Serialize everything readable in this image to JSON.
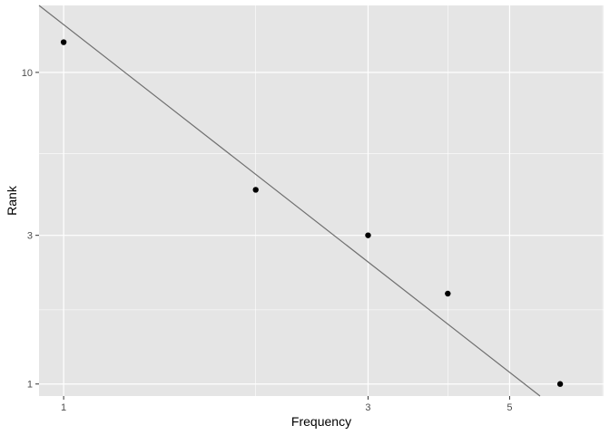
{
  "chart_data": {
    "type": "scatter",
    "title": "",
    "xlabel": "Frequency",
    "ylabel": "Rank",
    "x_scale": "log",
    "y_scale": "log",
    "xlim": [
      0.915,
      7.02
    ],
    "ylim": [
      0.915,
      16.4
    ],
    "x_major_ticks": [
      1,
      3,
      5
    ],
    "x_minor_ticks": [
      2,
      4,
      7
    ],
    "y_major_ticks": [
      1,
      3,
      10
    ],
    "y_minor_ticks": [
      1.73,
      5.48
    ],
    "grid": true,
    "points": [
      {
        "x": 1.0,
        "y": 12.5
      },
      {
        "x": 2.0,
        "y": 4.2
      },
      {
        "x": 3.0,
        "y": 3.0
      },
      {
        "x": 4.0,
        "y": 1.95
      },
      {
        "x": 6.0,
        "y": 1.0
      }
    ],
    "fit_line": {
      "x": [
        0.915,
        5.58
      ],
      "y": [
        16.4,
        0.915
      ]
    },
    "colors": {
      "panel": "#e5e5e5",
      "grid": "#ffffff",
      "points": "#000000",
      "fit_line": "#707070",
      "tick_text": "#4d4d4d",
      "tick_mark": "#333333"
    }
  }
}
